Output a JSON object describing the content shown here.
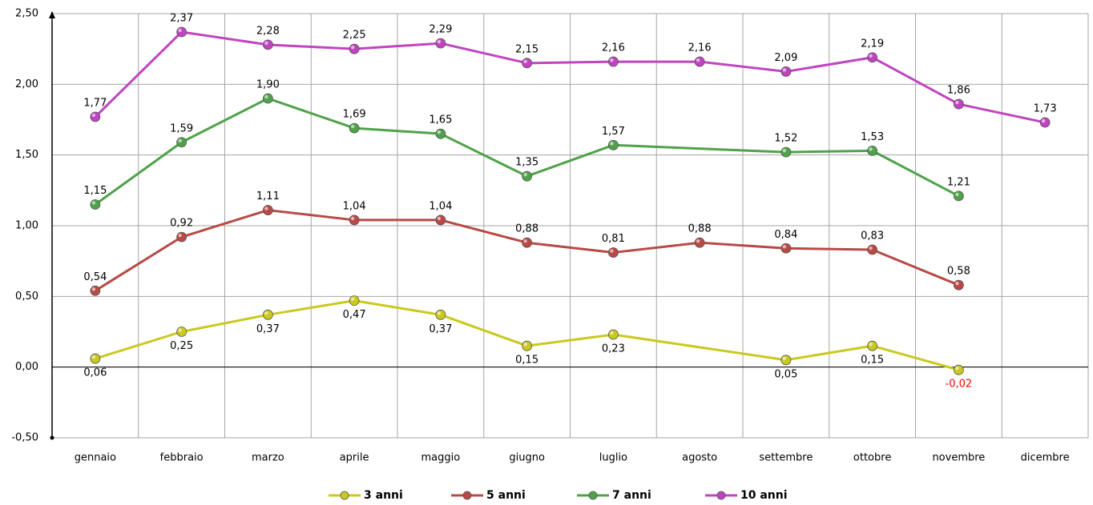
{
  "chart_data": {
    "type": "line",
    "categories": [
      "gennaio",
      "febbraio",
      "marzo",
      "aprile",
      "maggio",
      "giugno",
      "luglio",
      "agosto",
      "settembre",
      "ottobre",
      "novembre",
      "dicembre"
    ],
    "series": [
      {
        "name": "3 anni",
        "color": "#c9c91e",
        "values": [
          0.06,
          0.25,
          0.37,
          0.47,
          0.37,
          0.15,
          0.23,
          null,
          0.05,
          0.15,
          -0.02,
          null
        ],
        "value_labels": [
          "0,06",
          "0,25",
          "0,37",
          "0,47",
          "0,37",
          "0,15",
          "0,23",
          null,
          "0,05",
          "0,15",
          "-0,02",
          null
        ]
      },
      {
        "name": "5 anni",
        "color": "#b84a46",
        "values": [
          0.54,
          0.92,
          1.11,
          1.04,
          1.04,
          0.88,
          0.81,
          0.88,
          0.84,
          0.83,
          0.58,
          null
        ],
        "value_labels": [
          "0,54",
          "0,92",
          "1,11",
          "1,04",
          "1,04",
          "0,88",
          "0,81",
          "0,88",
          "0,84",
          "0,83",
          "0,58",
          null
        ]
      },
      {
        "name": "7 anni",
        "color": "#4fa24a",
        "values": [
          1.15,
          1.59,
          1.9,
          1.69,
          1.65,
          1.35,
          1.57,
          null,
          1.52,
          1.53,
          1.21,
          null
        ],
        "value_labels": [
          "1,15",
          "1,59",
          "1,90",
          "1,69",
          "1,65",
          "1,35",
          "1,57",
          null,
          "1,52",
          "1,53",
          "1,21",
          null
        ]
      },
      {
        "name": "10 anni",
        "color": "#c044c0",
        "values": [
          1.77,
          2.37,
          2.28,
          2.25,
          2.29,
          2.15,
          2.16,
          2.16,
          2.09,
          2.19,
          1.86,
          1.73
        ],
        "value_labels": [
          "1,77",
          "2,37",
          "2,28",
          "2,25",
          "2,29",
          "2,15",
          "2,16",
          "2,16",
          "2,09",
          "2,19",
          "1,86",
          "1,73"
        ]
      }
    ],
    "ylim": [
      -0.5,
      2.5
    ],
    "yticks": [
      {
        "value": -0.5,
        "label": "-0,50"
      },
      {
        "value": 0,
        "label": "0,00"
      },
      {
        "value": 0.5,
        "label": "0,50"
      },
      {
        "value": 1,
        "label": "1,00"
      },
      {
        "value": 1.5,
        "label": "1,50"
      },
      {
        "value": 2,
        "label": "2,00"
      },
      {
        "value": 2.5,
        "label": "2,50"
      }
    ],
    "grid": true,
    "negative_label_color": "#ff0000",
    "legend": "bottom"
  }
}
